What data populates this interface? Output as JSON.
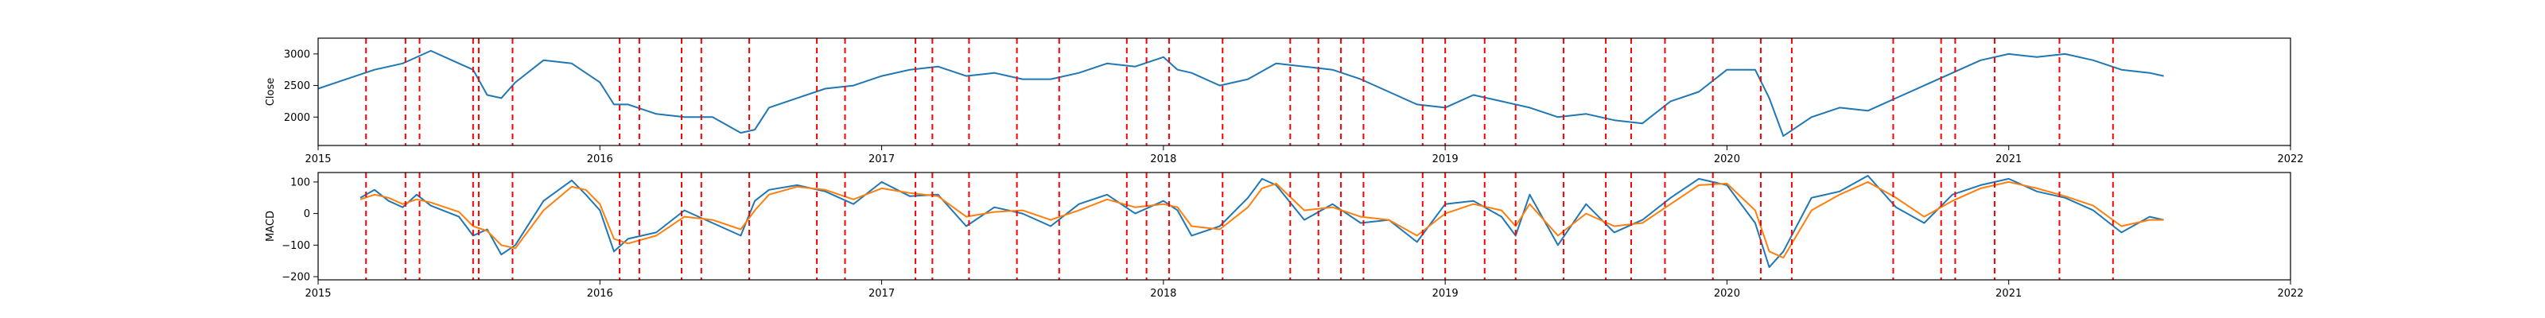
{
  "chart_data": [
    {
      "type": "line",
      "panel": "top",
      "ylabel": "Close",
      "xlim": [
        2015,
        2022
      ],
      "ylim": [
        1550,
        3250
      ],
      "x_ticks": [
        2015,
        2016,
        2017,
        2018,
        2019,
        2020,
        2021,
        2022
      ],
      "x_tick_labels": [
        "2015",
        "2016",
        "2017",
        "2018",
        "2019",
        "2020",
        "2021",
        "2022"
      ],
      "y_ticks": [
        2000,
        2500,
        3000
      ],
      "y_tick_labels": [
        "2000",
        "2500",
        "3000"
      ],
      "grid": false,
      "series": [
        {
          "color": "#1f77b4",
          "x": [
            2015.0,
            2015.1,
            2015.2,
            2015.3,
            2015.4,
            2015.5,
            2015.55,
            2015.6,
            2015.65,
            2015.7,
            2015.8,
            2015.9,
            2016.0,
            2016.05,
            2016.1,
            2016.2,
            2016.3,
            2016.4,
            2016.5,
            2016.55,
            2016.6,
            2016.7,
            2016.8,
            2016.9,
            2017.0,
            2017.1,
            2017.2,
            2017.3,
            2017.4,
            2017.5,
            2017.6,
            2017.7,
            2017.8,
            2017.9,
            2018.0,
            2018.05,
            2018.1,
            2018.2,
            2018.3,
            2018.4,
            2018.5,
            2018.6,
            2018.7,
            2018.8,
            2018.9,
            2019.0,
            2019.1,
            2019.2,
            2019.3,
            2019.4,
            2019.5,
            2019.6,
            2019.7,
            2019.8,
            2019.9,
            2020.0,
            2020.1,
            2020.15,
            2020.2,
            2020.3,
            2020.4,
            2020.5,
            2020.6,
            2020.7,
            2020.8,
            2020.9,
            2021.0,
            2021.1,
            2021.2,
            2021.3,
            2021.4,
            2021.5,
            2021.55
          ],
          "y": [
            2450,
            2600,
            2750,
            2850,
            3050,
            2850,
            2750,
            2350,
            2300,
            2550,
            2900,
            2850,
            2550,
            2200,
            2200,
            2050,
            2000,
            2000,
            1750,
            1800,
            2150,
            2300,
            2450,
            2500,
            2650,
            2750,
            2800,
            2650,
            2700,
            2600,
            2600,
            2700,
            2850,
            2800,
            2950,
            2750,
            2700,
            2500,
            2600,
            2850,
            2800,
            2750,
            2600,
            2400,
            2200,
            2150,
            2350,
            2250,
            2150,
            2000,
            2050,
            1950,
            1900,
            2250,
            2400,
            2750,
            2750,
            2300,
            1700,
            2000,
            2150,
            2100,
            2300,
            2500,
            2700,
            2900,
            3000,
            2950,
            3000,
            2900,
            2750,
            2700,
            2650
          ]
        }
      ],
      "vlines": [
        2015.17,
        2015.31,
        2015.36,
        2015.55,
        2015.57,
        2015.69,
        2016.07,
        2016.14,
        2016.29,
        2016.36,
        2016.53,
        2016.77,
        2016.87,
        2017.12,
        2017.18,
        2017.31,
        2017.48,
        2017.63,
        2017.87,
        2017.94,
        2018.02,
        2018.21,
        2018.45,
        2018.55,
        2018.63,
        2018.71,
        2018.92,
        2019.0,
        2019.14,
        2019.25,
        2019.42,
        2019.57,
        2019.66,
        2019.78,
        2019.95,
        2020.12,
        2020.23,
        2020.59,
        2020.76,
        2020.81,
        2020.95,
        2021.18,
        2021.37
      ],
      "vline_color": "#ff0000"
    },
    {
      "type": "line",
      "panel": "bottom",
      "ylabel": "MACD",
      "xlim": [
        2015,
        2022
      ],
      "ylim": [
        -210,
        130
      ],
      "x_ticks": [
        2015,
        2016,
        2017,
        2018,
        2019,
        2020,
        2021,
        2022
      ],
      "x_tick_labels": [
        "2015",
        "2016",
        "2017",
        "2018",
        "2019",
        "2020",
        "2021",
        "2022"
      ],
      "y_ticks": [
        -200,
        -100,
        0,
        100
      ],
      "y_tick_labels": [
        "−200",
        "−100",
        "0",
        "100"
      ],
      "grid": false,
      "series": [
        {
          "color": "#1f77b4",
          "x": [
            2015.15,
            2015.2,
            2015.25,
            2015.3,
            2015.35,
            2015.4,
            2015.5,
            2015.55,
            2015.6,
            2015.65,
            2015.7,
            2015.8,
            2015.9,
            2015.95,
            2016.0,
            2016.05,
            2016.1,
            2016.2,
            2016.3,
            2016.4,
            2016.5,
            2016.55,
            2016.6,
            2016.7,
            2016.8,
            2016.9,
            2017.0,
            2017.1,
            2017.2,
            2017.3,
            2017.4,
            2017.5,
            2017.6,
            2017.7,
            2017.8,
            2017.9,
            2018.0,
            2018.05,
            2018.1,
            2018.2,
            2018.3,
            2018.35,
            2018.4,
            2018.5,
            2018.6,
            2018.7,
            2018.8,
            2018.9,
            2019.0,
            2019.1,
            2019.2,
            2019.25,
            2019.3,
            2019.4,
            2019.5,
            2019.6,
            2019.7,
            2019.8,
            2019.9,
            2020.0,
            2020.1,
            2020.15,
            2020.2,
            2020.3,
            2020.4,
            2020.5,
            2020.6,
            2020.7,
            2020.8,
            2020.9,
            2021.0,
            2021.1,
            2021.2,
            2021.3,
            2021.4,
            2021.5,
            2021.55
          ],
          "y": [
            50,
            75,
            40,
            20,
            60,
            25,
            -10,
            -70,
            -50,
            -130,
            -100,
            40,
            105,
            60,
            10,
            -120,
            -80,
            -60,
            10,
            -30,
            -70,
            40,
            75,
            90,
            70,
            30,
            100,
            55,
            60,
            -40,
            20,
            0,
            -40,
            30,
            60,
            0,
            40,
            10,
            -70,
            -40,
            50,
            110,
            90,
            -20,
            30,
            -30,
            -20,
            -90,
            30,
            40,
            -10,
            -70,
            60,
            -100,
            30,
            -60,
            -20,
            50,
            110,
            90,
            -30,
            -170,
            -120,
            50,
            70,
            120,
            20,
            -30,
            60,
            90,
            110,
            70,
            50,
            10,
            -60,
            -10,
            -20
          ]
        },
        {
          "color": "#ff7f0e",
          "x": [
            2015.15,
            2015.2,
            2015.25,
            2015.3,
            2015.35,
            2015.4,
            2015.5,
            2015.55,
            2015.6,
            2015.65,
            2015.7,
            2015.8,
            2015.9,
            2015.95,
            2016.0,
            2016.05,
            2016.1,
            2016.2,
            2016.3,
            2016.4,
            2016.5,
            2016.55,
            2016.6,
            2016.7,
            2016.8,
            2016.9,
            2017.0,
            2017.1,
            2017.2,
            2017.3,
            2017.4,
            2017.5,
            2017.6,
            2017.7,
            2017.8,
            2017.9,
            2018.0,
            2018.05,
            2018.1,
            2018.2,
            2018.3,
            2018.35,
            2018.4,
            2018.5,
            2018.6,
            2018.7,
            2018.8,
            2018.9,
            2019.0,
            2019.1,
            2019.2,
            2019.25,
            2019.3,
            2019.4,
            2019.5,
            2019.6,
            2019.7,
            2019.8,
            2019.9,
            2020.0,
            2020.1,
            2020.15,
            2020.2,
            2020.3,
            2020.4,
            2020.5,
            2020.6,
            2020.7,
            2020.8,
            2020.9,
            2021.0,
            2021.1,
            2021.2,
            2021.3,
            2021.4,
            2021.5,
            2021.55
          ],
          "y": [
            45,
            60,
            50,
            30,
            45,
            35,
            5,
            -40,
            -55,
            -100,
            -110,
            10,
            85,
            75,
            30,
            -80,
            -95,
            -70,
            -10,
            -20,
            -50,
            10,
            60,
            85,
            75,
            45,
            80,
            65,
            55,
            -10,
            5,
            10,
            -20,
            10,
            45,
            20,
            30,
            20,
            -40,
            -50,
            20,
            80,
            95,
            10,
            20,
            -10,
            -20,
            -70,
            0,
            30,
            10,
            -40,
            30,
            -70,
            0,
            -40,
            -30,
            30,
            90,
            95,
            10,
            -120,
            -140,
            10,
            60,
            100,
            50,
            -10,
            40,
            80,
            100,
            80,
            55,
            25,
            -40,
            -20,
            -20
          ]
        }
      ],
      "vlines": [
        2015.17,
        2015.31,
        2015.36,
        2015.55,
        2015.57,
        2015.69,
        2016.07,
        2016.14,
        2016.29,
        2016.36,
        2016.53,
        2016.77,
        2016.87,
        2017.12,
        2017.18,
        2017.31,
        2017.48,
        2017.63,
        2017.87,
        2017.94,
        2018.02,
        2018.21,
        2018.45,
        2018.55,
        2018.63,
        2018.71,
        2018.92,
        2019.0,
        2019.14,
        2019.25,
        2019.42,
        2019.57,
        2019.66,
        2019.78,
        2019.95,
        2020.12,
        2020.23,
        2020.59,
        2020.76,
        2020.81,
        2020.95,
        2021.18,
        2021.37
      ],
      "vline_color": "#ff0000"
    }
  ]
}
